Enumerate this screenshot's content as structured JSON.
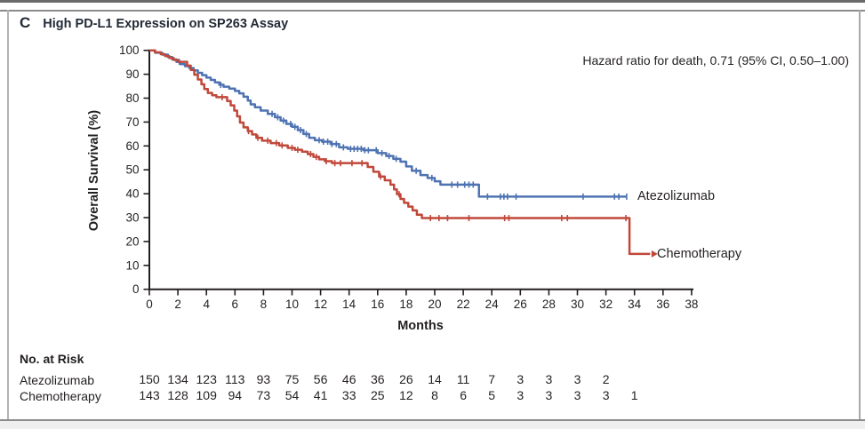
{
  "panel": {
    "letter": "C",
    "title": "High PD-L1 Expression on SP263 Assay"
  },
  "annotation": {
    "hazard_ratio": "Hazard ratio for death, 0.71 (95% CI, 0.50–1.00)"
  },
  "axes": {
    "y_label": "Overall Survival (%)",
    "x_label": "Months",
    "y_ticks": [
      100,
      90,
      80,
      70,
      60,
      50,
      40,
      30,
      20,
      10,
      0
    ],
    "x_ticks": [
      0,
      2,
      4,
      6,
      8,
      10,
      12,
      14,
      16,
      18,
      20,
      22,
      24,
      26,
      28,
      30,
      32,
      34,
      36,
      38
    ]
  },
  "risk_table": {
    "title": "No. at Risk",
    "months": [
      0,
      2,
      4,
      6,
      8,
      10,
      12,
      14,
      16,
      18,
      20,
      22,
      24,
      26,
      28,
      30,
      32,
      34
    ],
    "rows": [
      {
        "label": "Atezolizumab",
        "values": [
          150,
          134,
          123,
          113,
          93,
          75,
          56,
          46,
          36,
          26,
          14,
          11,
          7,
          3,
          3,
          3,
          2
        ]
      },
      {
        "label": "Chemotherapy",
        "values": [
          143,
          128,
          109,
          94,
          73,
          54,
          41,
          33,
          25,
          12,
          8,
          6,
          5,
          3,
          3,
          3,
          3,
          1
        ]
      }
    ]
  },
  "chart_data": {
    "type": "line",
    "subtype": "kaplan-meier-step",
    "title": "C High PD-L1 Expression on SP263 Assay",
    "xlabel": "Months",
    "ylabel": "Overall Survival (%)",
    "xlim": [
      0,
      38
    ],
    "ylim": [
      0,
      100
    ],
    "grid": false,
    "legend_position": "inline-right-of-curves",
    "annotation": "Hazard ratio for death, 0.71 (95% CI, 0.50–1.00)",
    "series": [
      {
        "name": "Atezolizumab",
        "color": "#4e73b2",
        "end_arrow": false,
        "points": [
          [
            0,
            100
          ],
          [
            0.4,
            99
          ],
          [
            0.9,
            98.2
          ],
          [
            1.3,
            97.2
          ],
          [
            1.6,
            96.2
          ],
          [
            1.9,
            95.2
          ],
          [
            2.2,
            94.2
          ],
          [
            2.5,
            93.4
          ],
          [
            2.8,
            92.6
          ],
          [
            3.1,
            91.6
          ],
          [
            3.4,
            90.6
          ],
          [
            3.7,
            89.6
          ],
          [
            4.0,
            88.6
          ],
          [
            4.3,
            87.6
          ],
          [
            4.6,
            86.6
          ],
          [
            4.9,
            85.6
          ],
          [
            5.2,
            84.8
          ],
          [
            5.6,
            84
          ],
          [
            6.0,
            83
          ],
          [
            6.3,
            82
          ],
          [
            6.6,
            80.6
          ],
          [
            6.9,
            79
          ],
          [
            7.1,
            77.4
          ],
          [
            7.4,
            76.2
          ],
          [
            7.8,
            74.8
          ],
          [
            8.3,
            73.4
          ],
          [
            8.8,
            72
          ],
          [
            9.2,
            70.6
          ],
          [
            9.6,
            69.2
          ],
          [
            10.0,
            68
          ],
          [
            10.4,
            66.6
          ],
          [
            10.8,
            65
          ],
          [
            11.2,
            63.4
          ],
          [
            11.6,
            62.4
          ],
          [
            12.1,
            61.8
          ],
          [
            12.7,
            60.8
          ],
          [
            13.3,
            59.4
          ],
          [
            13.9,
            58.8
          ],
          [
            15.0,
            58.2
          ],
          [
            16.0,
            57
          ],
          [
            16.6,
            55.8
          ],
          [
            17.1,
            54.6
          ],
          [
            17.6,
            53.4
          ],
          [
            18.0,
            51.4
          ],
          [
            18.4,
            49.6
          ],
          [
            19.0,
            47.8
          ],
          [
            19.5,
            46.6
          ],
          [
            20.0,
            45.2
          ],
          [
            20.4,
            43.8
          ],
          [
            23.1,
            38.8
          ],
          [
            33.45,
            38.8
          ]
        ],
        "censor_ticks": [
          2.1,
          5.0,
          8.6,
          9.0,
          9.4,
          9.9,
          10.2,
          10.6,
          11.0,
          11.9,
          12.2,
          12.5,
          12.8,
          13.1,
          13.6,
          14.1,
          14.35,
          14.6,
          14.85,
          15.1,
          15.35,
          15.9,
          16.3,
          16.8,
          17.3,
          18.7,
          19.8,
          21.2,
          21.6,
          22.1,
          22.4,
          22.7,
          23.7,
          24.6,
          24.85,
          25.1,
          25.7,
          30.4,
          32.6,
          32.9,
          33.45
        ]
      },
      {
        "name": "Chemotherapy",
        "color": "#c0483a",
        "end_arrow": true,
        "points": [
          [
            0,
            100
          ],
          [
            0.4,
            99.2
          ],
          [
            0.8,
            98.4
          ],
          [
            1.1,
            97.6
          ],
          [
            1.4,
            96.8
          ],
          [
            1.7,
            96
          ],
          [
            2.0,
            95.2
          ],
          [
            2.65,
            93.6
          ],
          [
            2.9,
            91.8
          ],
          [
            3.15,
            89.8
          ],
          [
            3.4,
            87.8
          ],
          [
            3.65,
            85.8
          ],
          [
            3.85,
            83.8
          ],
          [
            4.1,
            82.2
          ],
          [
            4.4,
            81.2
          ],
          [
            4.7,
            80.4
          ],
          [
            5.45,
            78.8
          ],
          [
            5.7,
            77
          ],
          [
            5.95,
            74.8
          ],
          [
            6.15,
            72.4
          ],
          [
            6.35,
            69.8
          ],
          [
            6.6,
            67.8
          ],
          [
            6.9,
            66.2
          ],
          [
            7.2,
            64.8
          ],
          [
            7.5,
            63.4
          ],
          [
            7.9,
            62.2
          ],
          [
            8.5,
            61.2
          ],
          [
            9.1,
            60.2
          ],
          [
            9.7,
            59.2
          ],
          [
            10.2,
            58.4
          ],
          [
            10.7,
            57.6
          ],
          [
            11.1,
            56.6
          ],
          [
            11.5,
            55.4
          ],
          [
            11.9,
            54.4
          ],
          [
            12.3,
            53.6
          ],
          [
            12.8,
            52.8
          ],
          [
            15.3,
            51.2
          ],
          [
            15.7,
            49.2
          ],
          [
            16.1,
            47.2
          ],
          [
            16.5,
            45.6
          ],
          [
            16.9,
            43.8
          ],
          [
            17.15,
            41.8
          ],
          [
            17.35,
            39.8
          ],
          [
            17.6,
            37.8
          ],
          [
            17.85,
            36.2
          ],
          [
            18.15,
            34.6
          ],
          [
            18.45,
            33
          ],
          [
            18.75,
            31.2
          ],
          [
            19.1,
            29.8
          ],
          [
            33.6,
            29.8
          ],
          [
            33.65,
            14.8
          ],
          [
            35.1,
            14.8
          ]
        ],
        "censor_ticks": [
          5.1,
          6.95,
          7.6,
          8.3,
          8.9,
          9.3,
          10.0,
          10.4,
          11.3,
          11.7,
          12.4,
          13.0,
          13.4,
          14.2,
          14.9,
          16.2,
          17.5,
          19.7,
          20.3,
          20.9,
          22.4,
          24.9,
          25.2,
          28.9,
          29.3,
          33.4
        ]
      }
    ]
  }
}
